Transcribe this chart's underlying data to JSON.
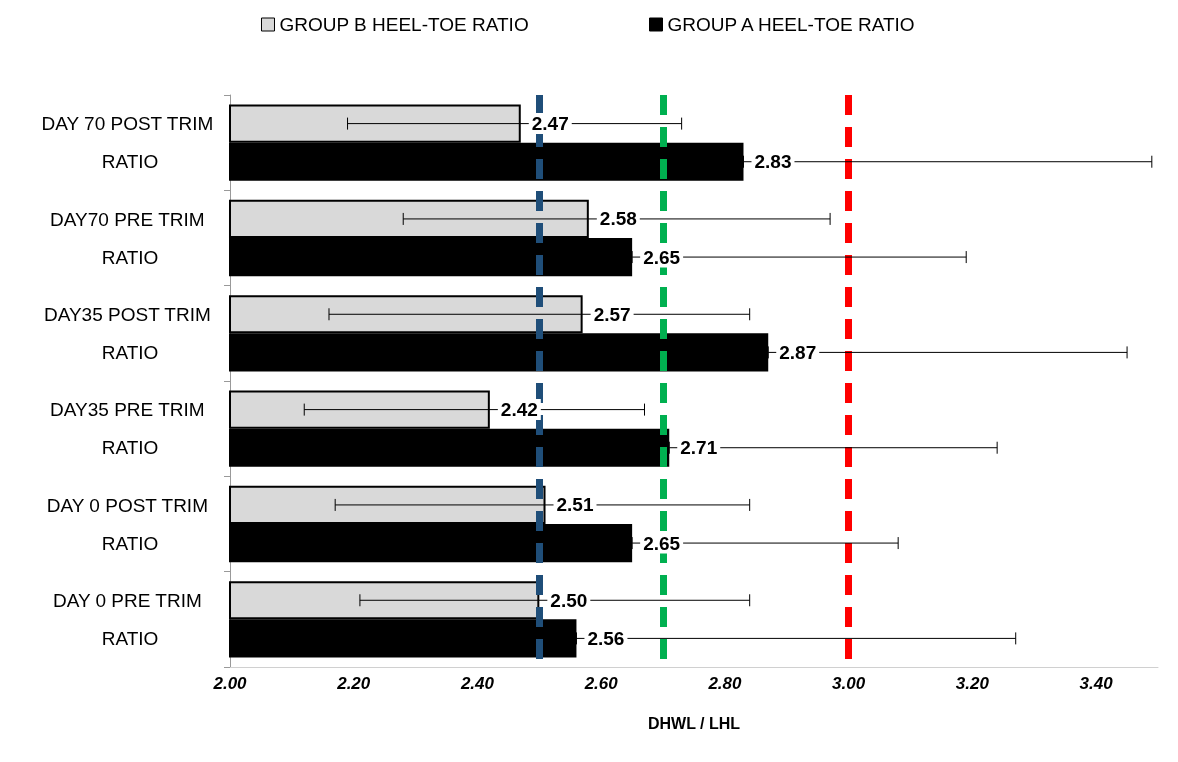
{
  "chart_data": {
    "type": "bar",
    "orientation": "horizontal",
    "xlabel": "DHWL / LHL",
    "categories": [
      "DAY 70 POST TRIM RATIO",
      "DAY70 PRE TRIM RATIO",
      "DAY35 POST TRIM RATIO",
      "DAY35 PRE TRIM RATIO",
      "DAY 0 POST TRIM RATIO",
      "DAY 0 PRE TRIM RATIO"
    ],
    "series": [
      {
        "name": "GROUP B HEEL-TOE RATIO",
        "color": "#d9d9d9",
        "values": [
          2.47,
          2.58,
          2.57,
          2.42,
          2.51,
          2.5
        ],
        "value_labels": [
          "2.47",
          "2.58",
          "2.57",
          "2.42",
          "2.51",
          "2.50"
        ],
        "errors": [
          [
            2.19,
            2.73
          ],
          [
            2.28,
            2.97
          ],
          [
            2.16,
            2.84
          ],
          [
            2.12,
            2.67
          ],
          [
            2.17,
            2.84
          ],
          [
            2.21,
            2.84
          ]
        ]
      },
      {
        "name": "GROUP A HEEL-TOE RATIO",
        "color": "#000000",
        "values": [
          2.83,
          2.65,
          2.87,
          2.71,
          2.65,
          2.56
        ],
        "value_labels": [
          "2.83",
          "2.65",
          "2.87",
          "2.71",
          "2.65",
          "2.56"
        ],
        "errors": [
          [
            2.83,
            3.49
          ],
          [
            2.65,
            3.19
          ],
          [
            2.87,
            3.45
          ],
          [
            2.71,
            3.24
          ],
          [
            2.65,
            3.08
          ],
          [
            2.56,
            3.27
          ]
        ]
      }
    ],
    "xlim": [
      2.0,
      3.5
    ],
    "xticks": [
      {
        "value": 2.0,
        "label": "2.00"
      },
      {
        "value": 2.2,
        "label": "2.20"
      },
      {
        "value": 2.4,
        "label": "2.40"
      },
      {
        "value": 2.6,
        "label": "2.60"
      },
      {
        "value": 2.8,
        "label": "2.80"
      },
      {
        "value": 3.0,
        "label": "3.00"
      },
      {
        "value": 3.2,
        "label": "3.20"
      },
      {
        "value": 3.4,
        "label": "3.40"
      }
    ],
    "ref_lines": [
      {
        "axis": "x",
        "value": 2.5,
        "label": null,
        "color": "#1f4e79",
        "line_style": "dashed"
      },
      {
        "axis": "x",
        "value": 2.7,
        "label": null,
        "color": "#00b050",
        "line_style": "dashed"
      },
      {
        "axis": "x",
        "value": 3.0,
        "label": null,
        "color": "#ff0000",
        "line_style": "dashed"
      }
    ],
    "grid": false,
    "legend": "top"
  }
}
